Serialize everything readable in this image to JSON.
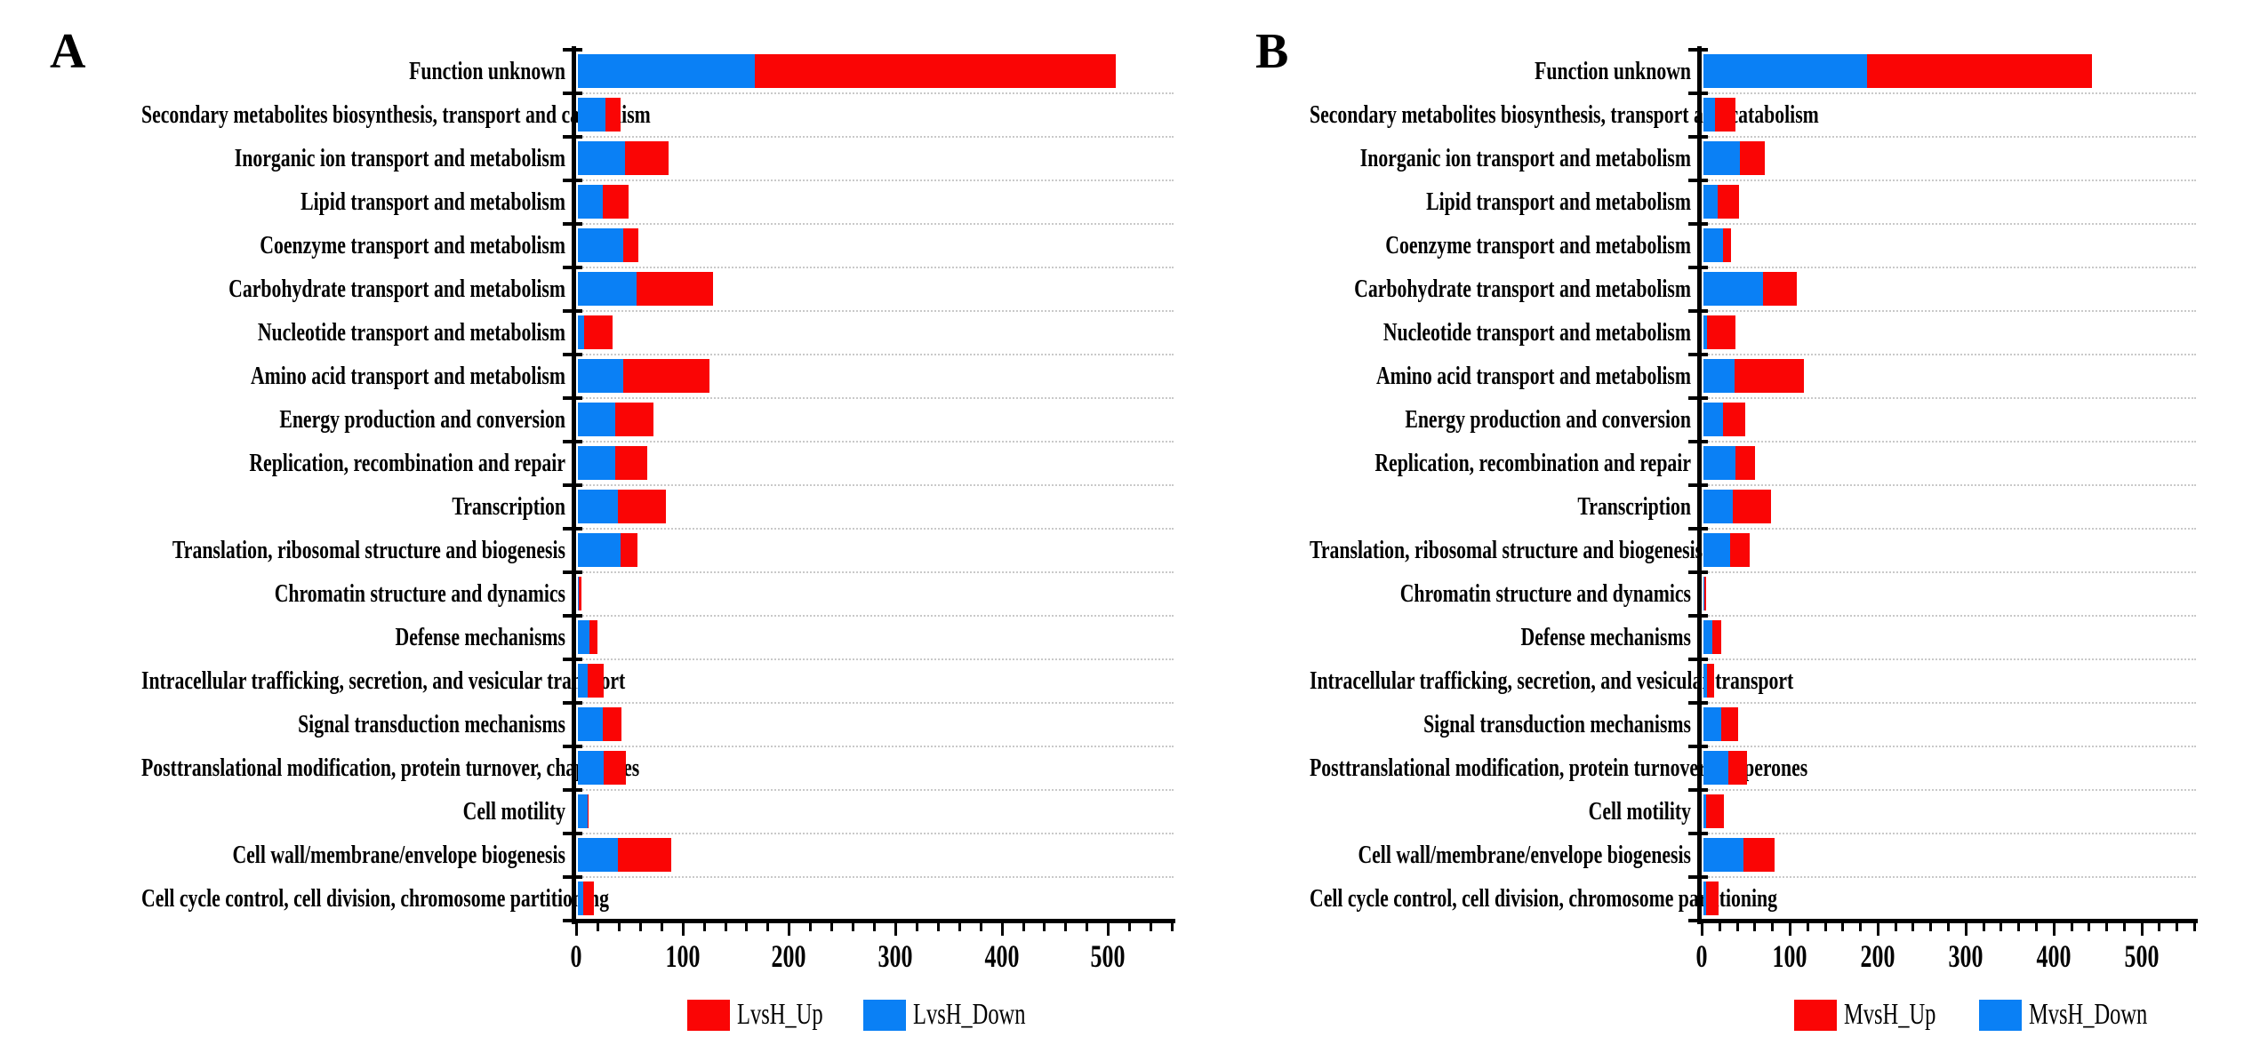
{
  "figure": {
    "background": "#ffffff",
    "colors": {
      "up": "#fa0505",
      "down": "#0a80f5",
      "axis": "#000000",
      "gridline": "#c9c9c9",
      "text": "#000000"
    },
    "panels": [
      {
        "letter": "A",
        "legend": [
          {
            "label": "LvsH_Up",
            "color_key": "up"
          },
          {
            "label": "LvsH_Down",
            "color_key": "down"
          }
        ]
      },
      {
        "letter": "B",
        "legend": [
          {
            "label": "MvsH_Up",
            "color_key": "up"
          },
          {
            "label": "MvsH_Down",
            "color_key": "down"
          }
        ]
      }
    ]
  },
  "chart_data": [
    {
      "type": "bar",
      "orientation": "horizontal",
      "stacked": true,
      "panel": "A",
      "title": "",
      "xlabel": "",
      "ylabel": "",
      "xlim": [
        0,
        560
      ],
      "xticks": [
        0,
        100,
        200,
        300,
        400,
        500
      ],
      "minor_tick_step": 20,
      "grid": "horizontal-dotted-between-rows",
      "legend_position": "bottom",
      "categories": [
        "Function unknown",
        "Secondary metabolites biosynthesis, transport and catabolism",
        "Inorganic ion transport and metabolism",
        "Lipid transport and metabolism",
        "Coenzyme transport and metabolism",
        "Carbohydrate transport and metabolism",
        "Nucleotide transport and metabolism",
        "Amino acid transport and metabolism",
        "Energy production and conversion",
        "Replication, recombination and repair",
        "Transcription",
        "Translation, ribosomal structure and biogenesis",
        "Chromatin structure and dynamics",
        "Defense mechanisms",
        "Intracellular trafficking, secretion, and vesicular transport",
        "Signal transduction mechanisms",
        "Posttranslational modification, protein turnover, chaperones",
        "Cell motility",
        "Cell wall/membrane/envelope biogenesis",
        "Cell cycle control, cell division, chromosome partitioning"
      ],
      "series": [
        {
          "name": "LvsH_Down",
          "color": "#0a80f5",
          "values": [
            166,
            26,
            44,
            23,
            43,
            55,
            6,
            43,
            35,
            35,
            38,
            40,
            1,
            11,
            9,
            23,
            24,
            9,
            38,
            5
          ]
        },
        {
          "name": "LvsH_Up",
          "color": "#fa0505",
          "values": [
            340,
            14,
            41,
            25,
            14,
            72,
            27,
            81,
            36,
            30,
            45,
            16,
            2,
            7,
            15,
            18,
            21,
            1,
            50,
            10
          ]
        }
      ]
    },
    {
      "type": "bar",
      "orientation": "horizontal",
      "stacked": true,
      "panel": "B",
      "title": "",
      "xlabel": "",
      "ylabel": "",
      "xlim": [
        0,
        560
      ],
      "xticks": [
        0,
        100,
        200,
        300,
        400,
        500
      ],
      "minor_tick_step": 20,
      "grid": "horizontal-dotted-between-rows",
      "legend_position": "bottom",
      "categories": [
        "Function unknown",
        "Secondary metabolites biosynthesis, transport and catabolism",
        "Inorganic ion transport and metabolism",
        "Lipid transport and metabolism",
        "Coenzyme transport and metabolism",
        "Carbohydrate transport and metabolism",
        "Nucleotide transport and metabolism",
        "Amino acid transport and metabolism",
        "Energy production and conversion",
        "Replication, recombination and repair",
        "Transcription",
        "Translation, ribosomal structure and biogenesis",
        "Chromatin structure and dynamics",
        "Defense mechanisms",
        "Intracellular trafficking, secretion, and vesicular transport",
        "Signal transduction mechanisms",
        "Posttranslational modification, protein turnover, chaperones",
        "Cell motility",
        "Cell wall/membrane/envelope biogenesis",
        "Cell cycle control, cell division, chromosome partitioning"
      ],
      "series": [
        {
          "name": "MvsH_Down",
          "color": "#0a80f5",
          "values": [
            186,
            13,
            41,
            16,
            22,
            68,
            4,
            35,
            22,
            36,
            33,
            30,
            1,
            10,
            4,
            20,
            28,
            3,
            45,
            3
          ]
        },
        {
          "name": "MvsH_Up",
          "color": "#fa0505",
          "values": [
            256,
            23,
            29,
            24,
            9,
            38,
            32,
            79,
            26,
            23,
            44,
            23,
            2,
            10,
            8,
            19,
            22,
            20,
            36,
            14
          ]
        }
      ]
    }
  ]
}
